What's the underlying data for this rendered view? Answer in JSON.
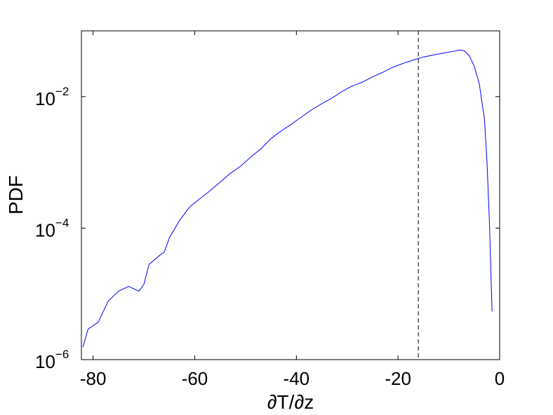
{
  "chart_data": {
    "type": "line",
    "xlabel": "∂T/∂z",
    "ylabel": "PDF",
    "x": [
      -82,
      -81,
      -79,
      -77,
      -75,
      -73,
      -71,
      -70,
      -69,
      -67,
      -66,
      -65,
      -63,
      -61,
      -59,
      -57,
      -55,
      -53,
      -51,
      -49,
      -47,
      -45,
      -43,
      -41,
      -39,
      -37,
      -35,
      -33,
      -31,
      -29,
      -27,
      -25,
      -23,
      -21,
      -19,
      -17,
      -15,
      -13,
      -11,
      -9,
      -8,
      -7,
      -6,
      -5,
      -4,
      -3,
      -2.5,
      -2,
      -1.5
    ],
    "series": [
      {
        "color": "#0000ff",
        "values": [
          1.55e-06,
          2.9e-06,
          3.7e-06,
          7.8e-06,
          1.1e-05,
          1.3e-05,
          1.1e-05,
          1.4e-05,
          2.8e-05,
          3.8e-05,
          4.3e-05,
          7.1e-05,
          0.00013,
          0.00021,
          0.00028,
          0.00037,
          0.0005,
          0.00068,
          0.00087,
          0.0012,
          0.0016,
          0.0023,
          0.003,
          0.0038,
          0.0049,
          0.0063,
          0.0078,
          0.0095,
          0.012,
          0.0145,
          0.0166,
          0.02,
          0.0234,
          0.028,
          0.032,
          0.036,
          0.04,
          0.043,
          0.046,
          0.049,
          0.051,
          0.05,
          0.042,
          0.029,
          0.0155,
          0.0046,
          0.00105,
          0.000115,
          5.4e-06
        ]
      }
    ],
    "reference_line": {
      "x": -16,
      "color": "#000000",
      "style": "dashed"
    },
    "xlim": [
      -82.3,
      0
    ],
    "xticks": [
      -80,
      -60,
      -40,
      -20,
      0
    ],
    "ylim": [
      1e-06,
      0.1
    ],
    "ylog": true,
    "yticks": [
      {
        "value": 1e-06,
        "label": "10",
        "exponent": "−6"
      },
      {
        "value": 0.0001,
        "label": "10",
        "exponent": "−4"
      },
      {
        "value": 0.01,
        "label": "10",
        "exponent": "−2"
      }
    ],
    "grid": false
  }
}
